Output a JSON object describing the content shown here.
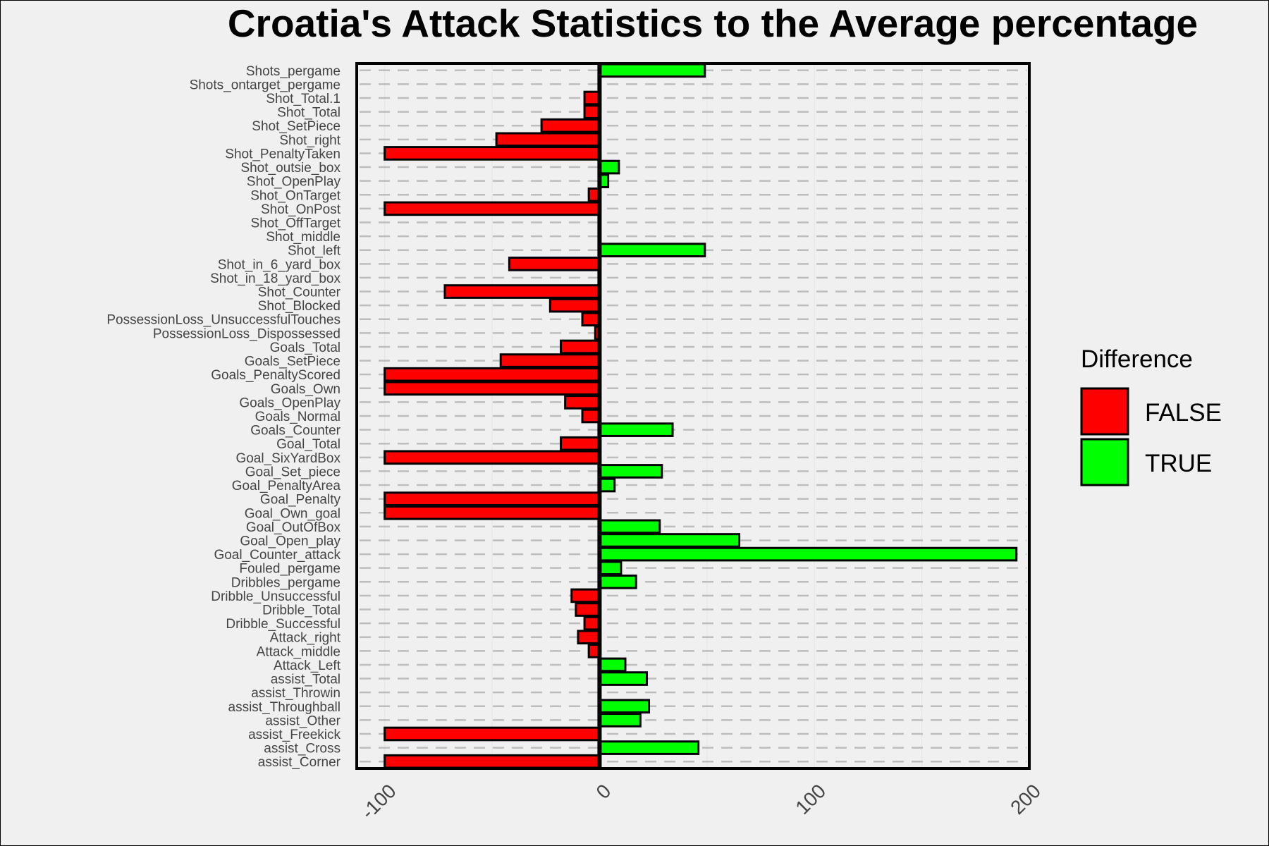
{
  "chart_data": {
    "type": "bar",
    "orientation": "horizontal",
    "title": "Croatia's Attack Statistics to the Average percentage",
    "xlabel": "",
    "ylabel": "",
    "xlim": [
      -113,
      200
    ],
    "x_ticks": [
      -100,
      0,
      100,
      200
    ],
    "x_tick_labels": [
      "-100",
      "0",
      "100",
      "200"
    ],
    "grid": "dashed horizontal lines",
    "legend": {
      "title": "Difference",
      "position": "right",
      "entries": [
        {
          "label": "FALSE",
          "color": "#ff0000"
        },
        {
          "label": "TRUE",
          "color": "#00ff00"
        }
      ]
    },
    "categories": [
      "Shots_pergame",
      "Shots_ontarget_pergame",
      "Shot_Total.1",
      "Shot_Total",
      "Shot_SetPiece",
      "Shot_right",
      "Shot_PenaltyTaken",
      "Shot_outsie_box",
      "Shot_OpenPlay",
      "Shot_OnTarget",
      "Shot_OnPost",
      "Shot_OffTarget",
      "Shot_middle",
      "Shot_left",
      "Shot_in_6_yard_box",
      "Shot_in_18_yard_box",
      "Shot_Counter",
      "Shot_Blocked",
      "PossessionLoss_UnsuccessfulTouches",
      "PossessionLoss_Dispossessed",
      "Goals_Total",
      "Goals_SetPiece",
      "Goals_PenaltyScored",
      "Goals_Own",
      "Goals_OpenPlay",
      "Goals_Normal",
      "Goals_Counter",
      "Goal_Total",
      "Goal_SixYardBox",
      "Goal_Set_piece",
      "Goal_PenaltyArea",
      "Goal_Penalty",
      "Goal_Own_goal",
      "Goal_OutOfBox",
      "Goal_Open_play",
      "Goal_Counter_attack",
      "Fouled_pergame",
      "Dribbles_pergame",
      "Dribble_Unsuccessful",
      "Dribble_Total",
      "Dribble_Successful",
      "Attack_right",
      "Attack_middle",
      "Attack_Left",
      "assist_Total",
      "assist_Throwin",
      "assist_Throughball",
      "assist_Other",
      "assist_Freekick",
      "assist_Cross",
      "assist_Corner"
    ],
    "values": [
      49,
      0,
      -7,
      -7,
      -27,
      -48,
      -100,
      9,
      4,
      -5,
      -100,
      0,
      0,
      49,
      -42,
      0,
      -72,
      -23,
      -8,
      -2,
      -18,
      -46,
      -100,
      -100,
      -16,
      -8,
      34,
      -18,
      -100,
      29,
      7,
      -100,
      -100,
      28,
      65,
      194,
      10,
      17,
      -13,
      -11,
      -7,
      -10,
      -5,
      12,
      22,
      0,
      23,
      19,
      -100,
      46,
      -100
    ],
    "difference": [
      true,
      false,
      false,
      false,
      false,
      false,
      false,
      true,
      true,
      false,
      false,
      false,
      false,
      true,
      false,
      false,
      false,
      false,
      false,
      false,
      false,
      false,
      false,
      false,
      false,
      false,
      true,
      false,
      false,
      true,
      true,
      false,
      false,
      true,
      true,
      true,
      true,
      true,
      false,
      false,
      false,
      false,
      false,
      true,
      true,
      false,
      true,
      true,
      false,
      true,
      false
    ]
  }
}
